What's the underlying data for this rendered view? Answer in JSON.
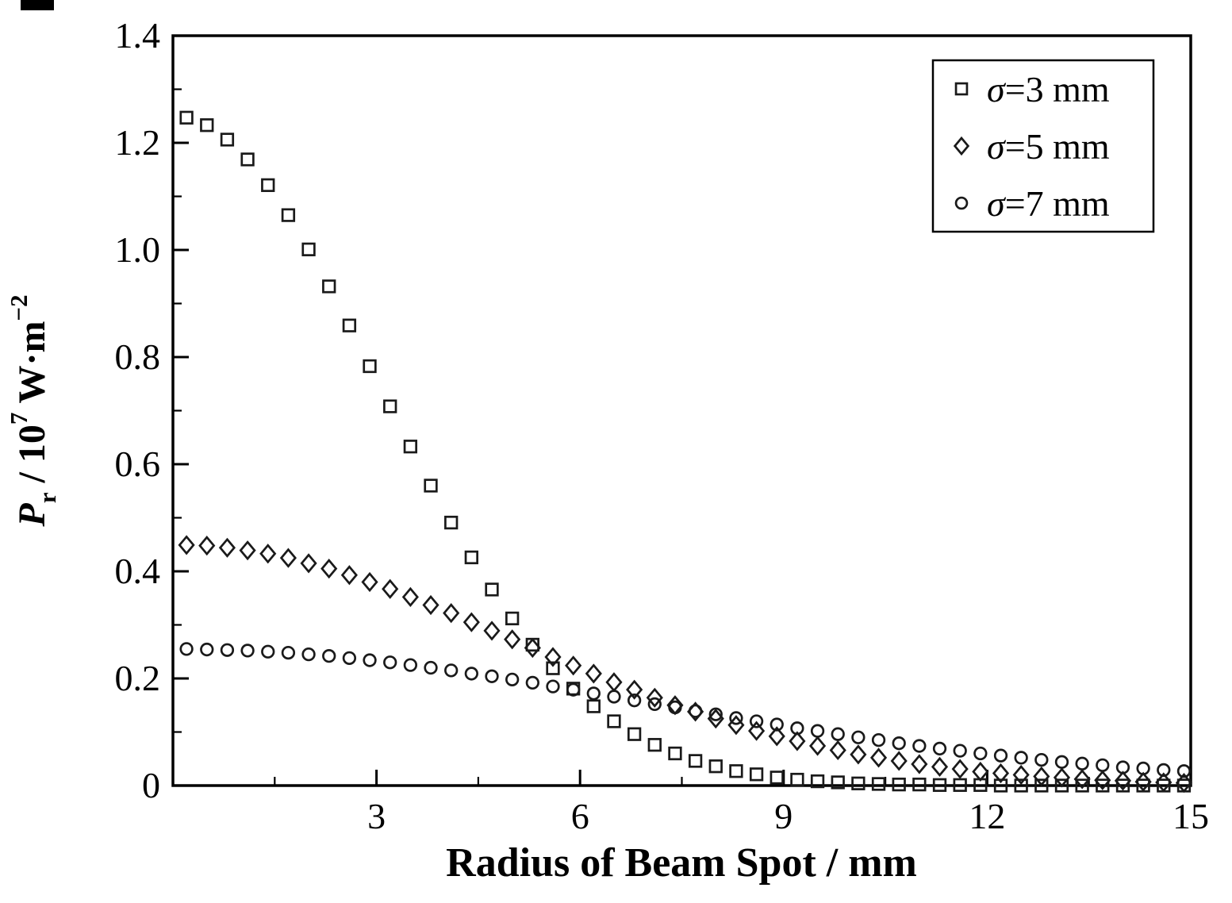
{
  "chart_data": {
    "type": "scatter",
    "title": "",
    "xlabel": "Radius of Beam Spot / mm",
    "ylabel_segments": [
      {
        "text": "P",
        "style": "italic"
      },
      {
        "text": "r",
        "style": "sub"
      },
      {
        "text": " / 10",
        "style": "normal"
      },
      {
        "text": "7",
        "style": "sup"
      },
      {
        "text": " W·m",
        "style": "normal"
      },
      {
        "text": "−2",
        "style": "sup"
      }
    ],
    "xlim": [
      0,
      15
    ],
    "ylim": [
      0,
      1.4
    ],
    "x_major_ticks": [
      3,
      6,
      9,
      12,
      15
    ],
    "x_tick_labels": [
      "3",
      "6",
      "9",
      "12",
      "15"
    ],
    "x_minor_ticks": [
      1.5,
      4.5,
      7.5,
      10.5,
      13.5
    ],
    "y_major_ticks": [
      0,
      0.2,
      0.4,
      0.6,
      0.8,
      1.0,
      1.2,
      1.4
    ],
    "y_tick_labels": [
      "0",
      "0.2",
      "0.4",
      "0.6",
      "0.8",
      "1.0",
      "1.2",
      "1.4"
    ],
    "y_minor_ticks": [
      0.1,
      0.3,
      0.5,
      0.7,
      0.9,
      1.1,
      1.3
    ],
    "grid": false,
    "legend_position": "top-right",
    "x": [
      0.2,
      0.5,
      0.8,
      1.1,
      1.4,
      1.7,
      2.0,
      2.3,
      2.6,
      2.9,
      3.2,
      3.5,
      3.8,
      4.1,
      4.4,
      4.7,
      5.0,
      5.3,
      5.6,
      5.9,
      6.2,
      6.5,
      6.8,
      7.1,
      7.4,
      7.7,
      8.0,
      8.3,
      8.6,
      8.9,
      9.2,
      9.5,
      9.8,
      10.1,
      10.4,
      10.7,
      11.0,
      11.3,
      11.6,
      11.9,
      12.2,
      12.5,
      12.8,
      13.1,
      13.4,
      13.7,
      14.0,
      14.3,
      14.6,
      14.9
    ],
    "series": [
      {
        "name": "σ=3 mm",
        "marker": "square",
        "values": [
          1.247,
          1.233,
          1.206,
          1.169,
          1.121,
          1.065,
          1.001,
          0.932,
          0.859,
          0.783,
          0.708,
          0.633,
          0.56,
          0.491,
          0.426,
          0.366,
          0.312,
          0.263,
          0.219,
          0.181,
          0.148,
          0.12,
          0.096,
          0.076,
          0.06,
          0.046,
          0.036,
          0.027,
          0.021,
          0.015,
          0.011,
          0.008,
          0.006,
          0.004,
          0.003,
          0.002,
          0.002,
          0.001,
          0.001,
          0.001,
          0,
          0,
          0,
          0,
          0,
          0,
          0,
          0,
          0,
          0
        ]
      },
      {
        "name": "σ=5 mm",
        "marker": "diamond",
        "values": [
          0.449,
          0.448,
          0.444,
          0.439,
          0.433,
          0.425,
          0.415,
          0.405,
          0.393,
          0.38,
          0.367,
          0.352,
          0.337,
          0.322,
          0.305,
          0.289,
          0.273,
          0.257,
          0.24,
          0.224,
          0.209,
          0.193,
          0.179,
          0.164,
          0.15,
          0.138,
          0.125,
          0.113,
          0.102,
          0.092,
          0.083,
          0.074,
          0.066,
          0.058,
          0.052,
          0.046,
          0.04,
          0.035,
          0.031,
          0.026,
          0.023,
          0.02,
          0.017,
          0.015,
          0.012,
          0.01,
          0.009,
          0.007,
          0.006,
          0.005
        ]
      },
      {
        "name": "σ=7 mm",
        "marker": "circle",
        "values": [
          0.255,
          0.254,
          0.253,
          0.252,
          0.25,
          0.248,
          0.245,
          0.242,
          0.238,
          0.234,
          0.23,
          0.225,
          0.22,
          0.215,
          0.209,
          0.204,
          0.198,
          0.192,
          0.185,
          0.179,
          0.172,
          0.166,
          0.159,
          0.152,
          0.146,
          0.139,
          0.133,
          0.126,
          0.12,
          0.114,
          0.107,
          0.102,
          0.096,
          0.09,
          0.085,
          0.079,
          0.074,
          0.069,
          0.065,
          0.06,
          0.056,
          0.052,
          0.048,
          0.044,
          0.041,
          0.038,
          0.034,
          0.032,
          0.029,
          0.027
        ]
      }
    ],
    "colors": {
      "axis": "#000000",
      "marker_stroke": "#1a1a1a",
      "background": "#ffffff",
      "legend_background": "#ffffff"
    }
  }
}
